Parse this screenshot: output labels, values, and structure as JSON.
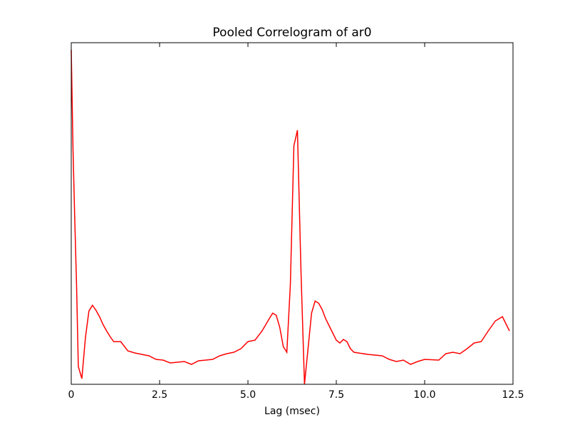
{
  "chart_data": {
    "type": "line",
    "title": "Pooled Correlogram of ar0",
    "x_label": "Lag (msec)",
    "x": [
      0,
      0.05,
      0.1,
      0.15,
      0.2,
      0.3,
      0.4,
      0.5,
      0.6,
      0.7,
      0.8,
      0.9,
      1.0,
      1.1,
      1.2,
      1.4,
      1.6,
      1.8,
      2.0,
      2.2,
      2.4,
      2.6,
      2.8,
      3.0,
      3.2,
      3.4,
      3.6,
      3.8,
      4.0,
      4.2,
      4.4,
      4.6,
      4.8,
      5.0,
      5.2,
      5.4,
      5.6,
      5.7,
      5.8,
      5.9,
      6.0,
      6.1,
      6.2,
      6.3,
      6.4,
      6.5,
      6.6,
      6.7,
      6.8,
      6.9,
      7.0,
      7.1,
      7.2,
      7.3,
      7.5,
      7.6,
      7.7,
      7.8,
      7.9,
      8.0,
      8.4,
      8.8,
      9.0,
      9.2,
      9.4,
      9.6,
      9.8,
      10.0,
      10.4,
      10.6,
      10.8,
      11.0,
      11.2,
      11.4,
      11.6,
      11.8,
      12.0,
      12.2,
      12.3,
      12.4
    ],
    "series": [
      {
        "color": "#ff0000",
        "values": [
          4.7,
          3.3,
          2.3,
          1.4,
          0.25,
          0.08,
          0.65,
          1.03,
          1.11,
          1.04,
          0.95,
          0.84,
          0.75,
          0.67,
          0.6,
          0.6,
          0.47,
          0.44,
          0.42,
          0.4,
          0.35,
          0.34,
          0.3,
          0.31,
          0.32,
          0.28,
          0.33,
          0.34,
          0.35,
          0.4,
          0.43,
          0.45,
          0.5,
          0.6,
          0.62,
          0.75,
          0.92,
          1.0,
          0.97,
          0.8,
          0.53,
          0.45,
          1.4,
          3.35,
          3.57,
          1.6,
          0.0,
          0.5,
          1.0,
          1.17,
          1.14,
          1.05,
          0.92,
          0.82,
          0.62,
          0.58,
          0.63,
          0.6,
          0.5,
          0.45,
          0.42,
          0.4,
          0.35,
          0.32,
          0.34,
          0.28,
          0.32,
          0.35,
          0.34,
          0.43,
          0.45,
          0.43,
          0.5,
          0.58,
          0.6,
          0.75,
          0.89,
          0.95,
          0.85,
          0.75
        ]
      }
    ],
    "xlim": [
      0,
      12.5
    ],
    "xticks": [
      0,
      2.5,
      {
        "value": 5,
        "label": "5.0"
      },
      7.5,
      {
        "value": 10,
        "label": "10.0"
      },
      12.5
    ],
    "ylim": [
      0,
      4.8
    ],
    "grid": false
  }
}
